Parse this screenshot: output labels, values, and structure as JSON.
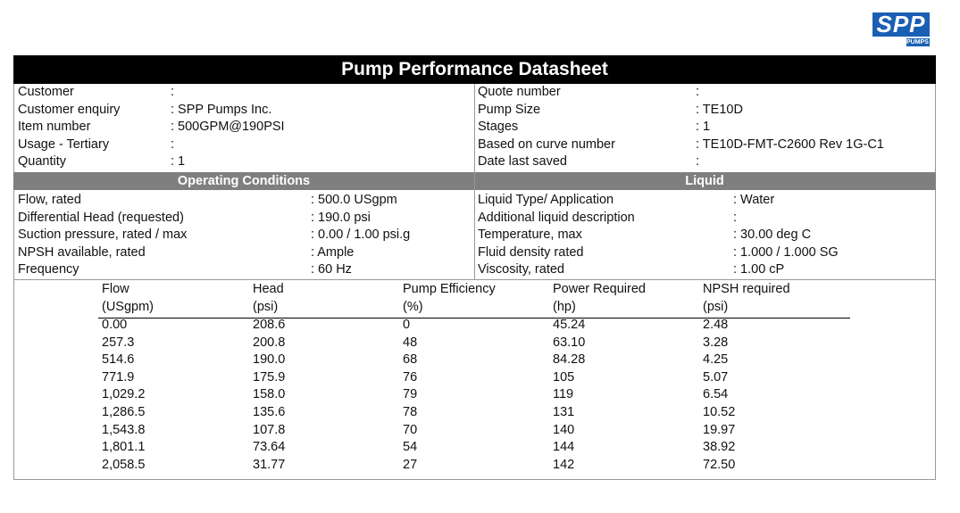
{
  "logo": {
    "brand": "SPP",
    "subtext": "PUMPS"
  },
  "title": "Pump Performance Datasheet",
  "info": {
    "left": [
      [
        "Customer",
        ":"
      ],
      [
        "Customer enquiry",
        ": SPP Pumps Inc."
      ],
      [
        "Item number",
        ": 500GPM@190PSI"
      ],
      [
        "Usage - Tertiary",
        ":"
      ],
      [
        "Quantity",
        ": 1"
      ]
    ],
    "right": [
      [
        "Quote number",
        ":"
      ],
      [
        "Pump Size",
        ": TE10D"
      ],
      [
        "Stages",
        ": 1"
      ],
      [
        "Based on curve number",
        ": TE10D-FMT-C2600 Rev 1G-C1"
      ],
      [
        "Date last saved",
        ":"
      ]
    ]
  },
  "sections": [
    "Operating Conditions",
    "Liquid"
  ],
  "conditions": {
    "left": [
      [
        "Flow, rated",
        ": 500.0 USgpm"
      ],
      [
        "Differential Head (requested)",
        ": 190.0 psi"
      ],
      [
        "Suction pressure, rated / max",
        ": 0.00 / 1.00 psi.g"
      ],
      [
        "NPSH available, rated",
        ": Ample"
      ],
      [
        "Frequency",
        ": 60 Hz"
      ]
    ],
    "right": [
      [
        "Liquid Type/ Application",
        ": Water"
      ],
      [
        "Additional liquid description",
        ":"
      ],
      [
        "Temperature, max",
        ": 30.00 deg C"
      ],
      [
        "Fluid density rated",
        ": 1.000 / 1.000 SG"
      ],
      [
        "Viscosity, rated",
        ": 1.00 cP"
      ]
    ]
  },
  "table": {
    "header": [
      "Flow",
      "Head",
      "Pump Efficiency",
      "Power Required",
      "NPSH required"
    ],
    "units": [
      "(USgpm)",
      "(psi)",
      "(%)",
      "(hp)",
      "(psi)"
    ],
    "rows": [
      [
        "0.00",
        "208.6",
        "0",
        "45.24",
        "2.48"
      ],
      [
        "257.3",
        "200.8",
        "48",
        "63.10",
        "3.28"
      ],
      [
        "514.6",
        "190.0",
        "68",
        "84.28",
        "4.25"
      ],
      [
        "771.9",
        "175.9",
        "76",
        "105",
        "5.07"
      ],
      [
        "1,029.2",
        "158.0",
        "79",
        "119",
        "6.54"
      ],
      [
        "1,286.5",
        "135.6",
        "78",
        "131",
        "10.52"
      ],
      [
        "1,543.8",
        "107.8",
        "70",
        "140",
        "19.97"
      ],
      [
        "1,801.1",
        "73.64",
        "54",
        "144",
        "38.92"
      ],
      [
        "2,058.5",
        "31.77",
        "27",
        "142",
        "72.50"
      ]
    ]
  }
}
